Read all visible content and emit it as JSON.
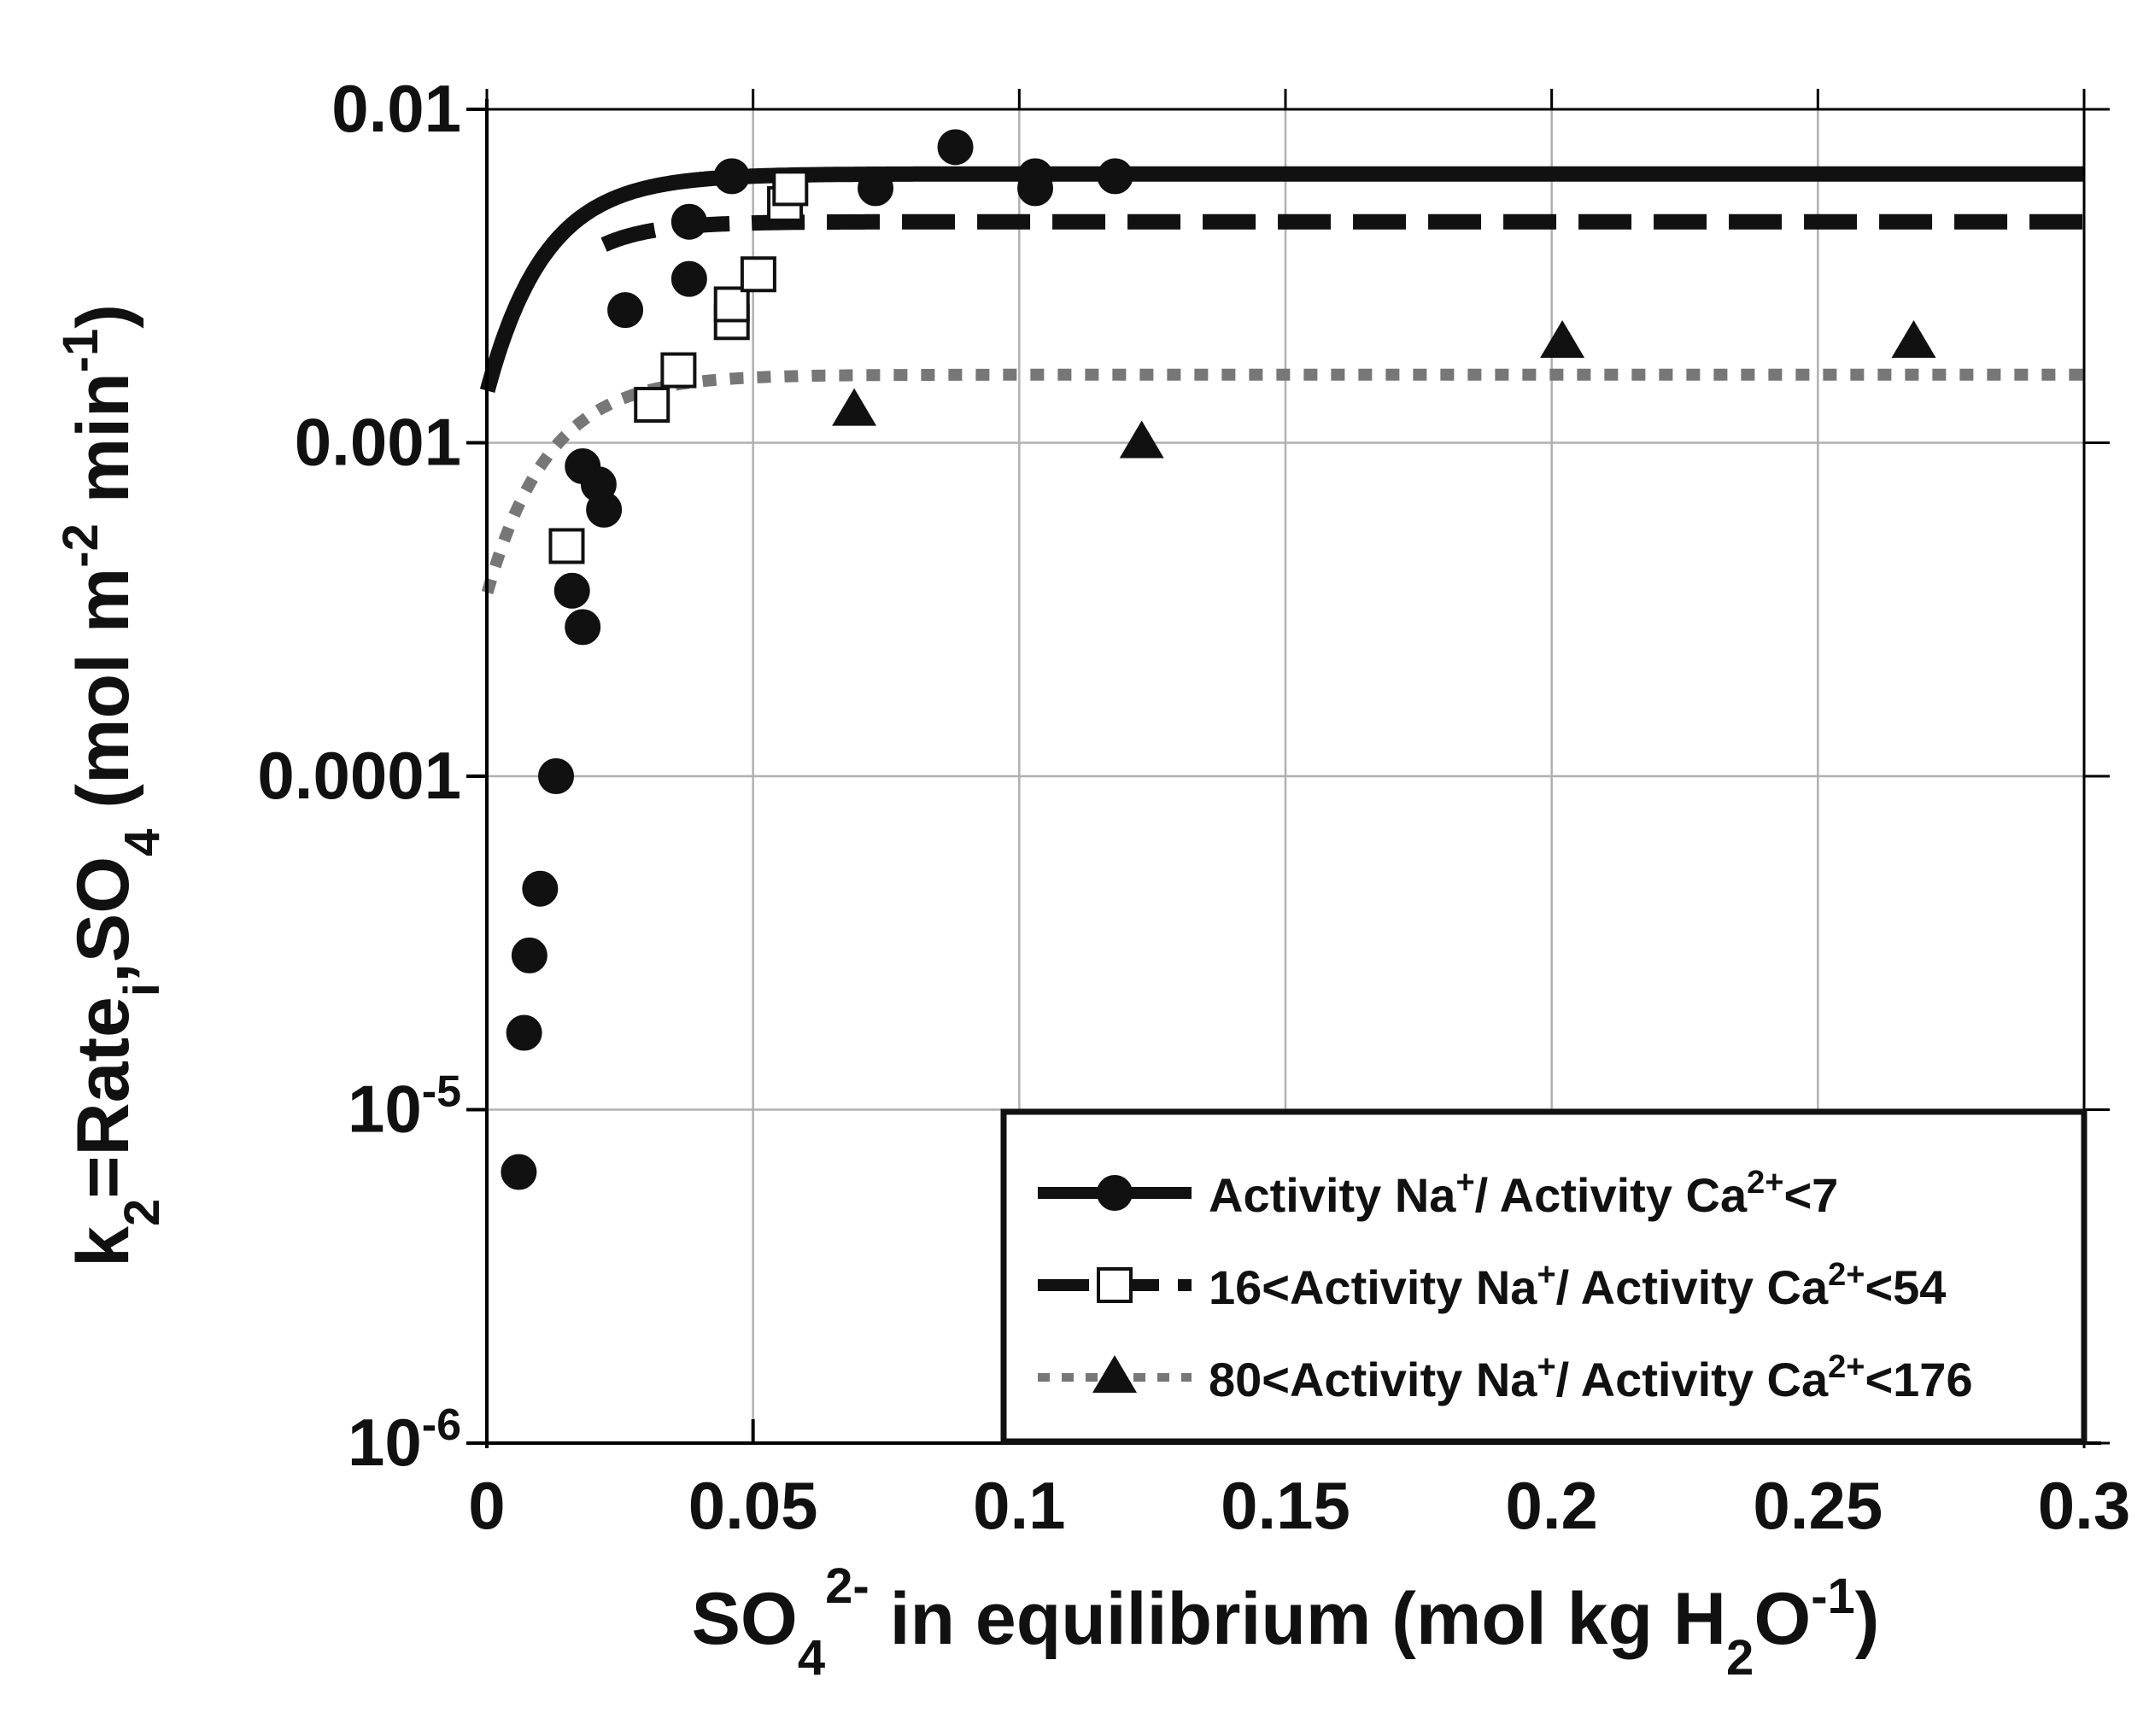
{
  "chart_data": {
    "type": "scatter",
    "title": "",
    "xlabel": {
      "main": "SO",
      "sub": "4",
      "sup": "2-",
      "rest": " in equilibrium  (mol kg H",
      "sub2": "2",
      "rest2": "O",
      "sup2": "-1",
      "end": ")"
    },
    "ylabel": {
      "k": "k",
      "k_sub": "2",
      "mid": "=Rate",
      "mid_sub": "i",
      "so": ",SO",
      "so_sub": "4",
      "units": " (mol m",
      "u_sup1": "-2",
      "units2": " min",
      "u_sup2": "-1",
      "end": ")"
    },
    "xlim": [
      0,
      0.3
    ],
    "ylim_log10": [
      -6,
      -2
    ],
    "yscale": "log",
    "x_ticks": [
      {
        "v": 0,
        "label": "0"
      },
      {
        "v": 0.05,
        "label": "0.05"
      },
      {
        "v": 0.1,
        "label": "0.1"
      },
      {
        "v": 0.15,
        "label": "0.15"
      },
      {
        "v": 0.2,
        "label": "0.2"
      },
      {
        "v": 0.25,
        "label": "0.25"
      },
      {
        "v": 0.3,
        "label": "0.3"
      }
    ],
    "y_ticks": [
      {
        "exp": -2,
        "label": "0.01"
      },
      {
        "exp": -3,
        "label": "0.001"
      },
      {
        "exp": -4,
        "label": "0.0001"
      },
      {
        "exp": -5,
        "label": "10",
        "sup": "-5"
      },
      {
        "exp": -6,
        "label": "10",
        "sup": "-6"
      }
    ],
    "grid": true,
    "legend_position": "bottom-right",
    "series": [
      {
        "name": "Activity Na+/ Activity Ca2+<7",
        "legend": {
          "a": "Activity Na",
          "a_sup": "+",
          "b": "/ Activity Ca",
          "b_sup": "2+",
          "c": "<7"
        },
        "marker": "circle",
        "line": "solid",
        "color": "#111111",
        "points": [
          [
            0.006,
            6.5e-06
          ],
          [
            0.007,
            1.7e-05
          ],
          [
            0.008,
            2.9e-05
          ],
          [
            0.01,
            4.6e-05
          ],
          [
            0.013,
            0.0001
          ],
          [
            0.016,
            0.00036
          ],
          [
            0.018,
            0.00028
          ],
          [
            0.018,
            0.00085
          ],
          [
            0.021,
            0.00075
          ],
          [
            0.022,
            0.00063
          ],
          [
            0.026,
            0.0025
          ],
          [
            0.038,
            0.0046
          ],
          [
            0.038,
            0.0031
          ],
          [
            0.046,
            0.0063
          ],
          [
            0.073,
            0.0058
          ],
          [
            0.088,
            0.0077
          ],
          [
            0.103,
            0.0063
          ],
          [
            0.103,
            0.0058
          ],
          [
            0.118,
            0.0063
          ]
        ],
        "curve": {
          "k": 0.0064,
          "c": 0.0045,
          "s": 0.0109
        }
      },
      {
        "name": "16<Activity Na+/ Activity Ca2+<54",
        "legend": {
          "a": "16<Activity Na",
          "a_sup": "+",
          "b": "/ Activity Ca",
          "b_sup": "2+",
          "c": "<54"
        },
        "marker": "square-open",
        "line": "dashed",
        "color": "#111111",
        "points": [
          [
            0.015,
            0.00049
          ],
          [
            0.031,
            0.0013
          ],
          [
            0.036,
            0.00165
          ],
          [
            0.046,
            0.0023
          ],
          [
            0.046,
            0.0026
          ],
          [
            0.051,
            0.0032
          ],
          [
            0.056,
            0.0052
          ],
          [
            0.057,
            0.0058
          ]
        ],
        "curve": {
          "k": 0.0046,
          "c": 0.0045,
          "s": 0.0095,
          "x_start": 0.022
        }
      },
      {
        "name": "80<Activity Na+/ Activity Ca2+<176",
        "legend": {
          "a": "80<Activity Na",
          "a_sup": "+",
          "b": "/ Activity Ca",
          "b_sup": "2+",
          "c": "<176"
        },
        "marker": "triangle",
        "line": "dotted",
        "color": "#777777",
        "points": [
          [
            0.069,
            0.00125
          ],
          [
            0.123,
            0.001
          ],
          [
            0.202,
            0.002
          ],
          [
            0.268,
            0.002
          ]
        ],
        "curve": {
          "k": 0.0016,
          "c": 0.0048,
          "s": 0.0115
        }
      }
    ]
  }
}
